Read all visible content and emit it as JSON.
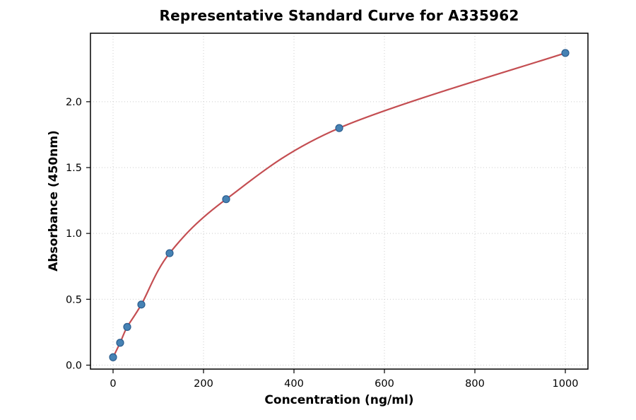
{
  "chart_data": {
    "type": "scatter",
    "title": "Representative Standard Curve for A335962",
    "xlabel": "Concentration (ng/ml)",
    "ylabel": "Absorbance (450nm)",
    "x": [
      0,
      15.6,
      31.25,
      62.5,
      125,
      250,
      500,
      1000
    ],
    "y": [
      0.06,
      0.17,
      0.29,
      0.46,
      0.85,
      1.26,
      1.8,
      2.37
    ],
    "marker": "circle",
    "fit_line": true,
    "xlim": [
      -50,
      1050
    ],
    "ylim": [
      -0.03,
      2.52
    ],
    "xticks": [
      0,
      200,
      400,
      600,
      800,
      1000
    ],
    "xtick_labels": [
      "0",
      "200",
      "400",
      "600",
      "800",
      "1000"
    ],
    "yticks": [
      0,
      0.5,
      1.0,
      1.5,
      2.0
    ],
    "ytick_labels": [
      "0.0",
      "0.5",
      "1.0",
      "1.5",
      "2.0"
    ],
    "grid": true,
    "legend": "none",
    "colors": {
      "curve": "#c44e52",
      "marker_fill": "#4682b4",
      "marker_edge": "#2b5d8e",
      "grid": "#cccccc",
      "spine": "#000000",
      "background": "#ffffff"
    }
  }
}
